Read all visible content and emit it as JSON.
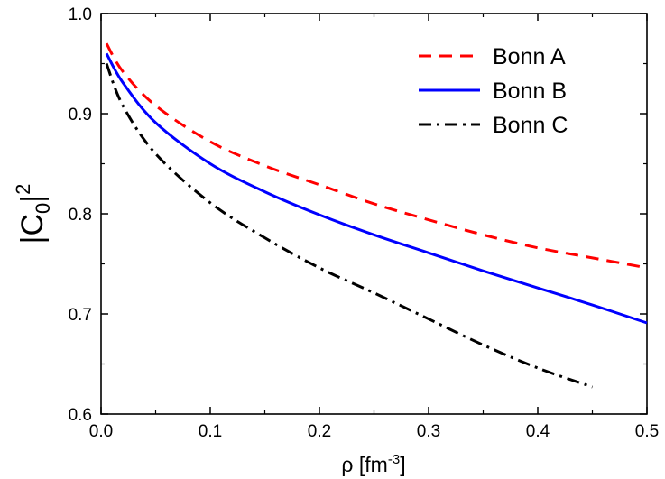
{
  "chart_data": {
    "type": "line",
    "xlabel": {
      "base": "ρ [fm",
      "sup": "-3",
      "close": "]"
    },
    "ylabel": {
      "open": "|C",
      "sub": "0",
      "close": "|",
      "sup": "2"
    },
    "xlim": [
      0.0,
      0.5
    ],
    "ylim": [
      0.6,
      1.0
    ],
    "x_ticks": [
      0.0,
      0.1,
      0.2,
      0.3,
      0.4,
      0.5
    ],
    "x_tick_labels": [
      "0.0",
      "0.1",
      "0.2",
      "0.3",
      "0.4",
      "0.5"
    ],
    "y_ticks": [
      0.6,
      0.7,
      0.8,
      0.9,
      1.0
    ],
    "y_tick_labels": [
      "0.6",
      "0.7",
      "0.8",
      "0.9",
      "1.0"
    ],
    "legend_position": "top-right",
    "grid": false,
    "series": [
      {
        "name": "Bonn A",
        "color": "#ff0000",
        "style": "dashed",
        "x": [
          0.005,
          0.02,
          0.05,
          0.1,
          0.15,
          0.2,
          0.25,
          0.3,
          0.35,
          0.4,
          0.45,
          0.5
        ],
        "y": [
          0.97,
          0.942,
          0.908,
          0.872,
          0.848,
          0.829,
          0.81,
          0.794,
          0.779,
          0.766,
          0.756,
          0.746
        ]
      },
      {
        "name": "Bonn B",
        "color": "#0000ff",
        "style": "solid",
        "x": [
          0.005,
          0.02,
          0.05,
          0.1,
          0.15,
          0.2,
          0.25,
          0.3,
          0.35,
          0.4,
          0.45,
          0.5
        ],
        "y": [
          0.96,
          0.931,
          0.891,
          0.85,
          0.822,
          0.799,
          0.779,
          0.761,
          0.743,
          0.726,
          0.709,
          0.691
        ]
      },
      {
        "name": "Bonn C",
        "color": "#000000",
        "style": "dashdot",
        "x": [
          0.005,
          0.02,
          0.05,
          0.1,
          0.15,
          0.2,
          0.25,
          0.3,
          0.35,
          0.4,
          0.45
        ],
        "y": [
          0.95,
          0.908,
          0.86,
          0.811,
          0.776,
          0.746,
          0.721,
          0.695,
          0.669,
          0.646,
          0.627
        ]
      }
    ]
  }
}
